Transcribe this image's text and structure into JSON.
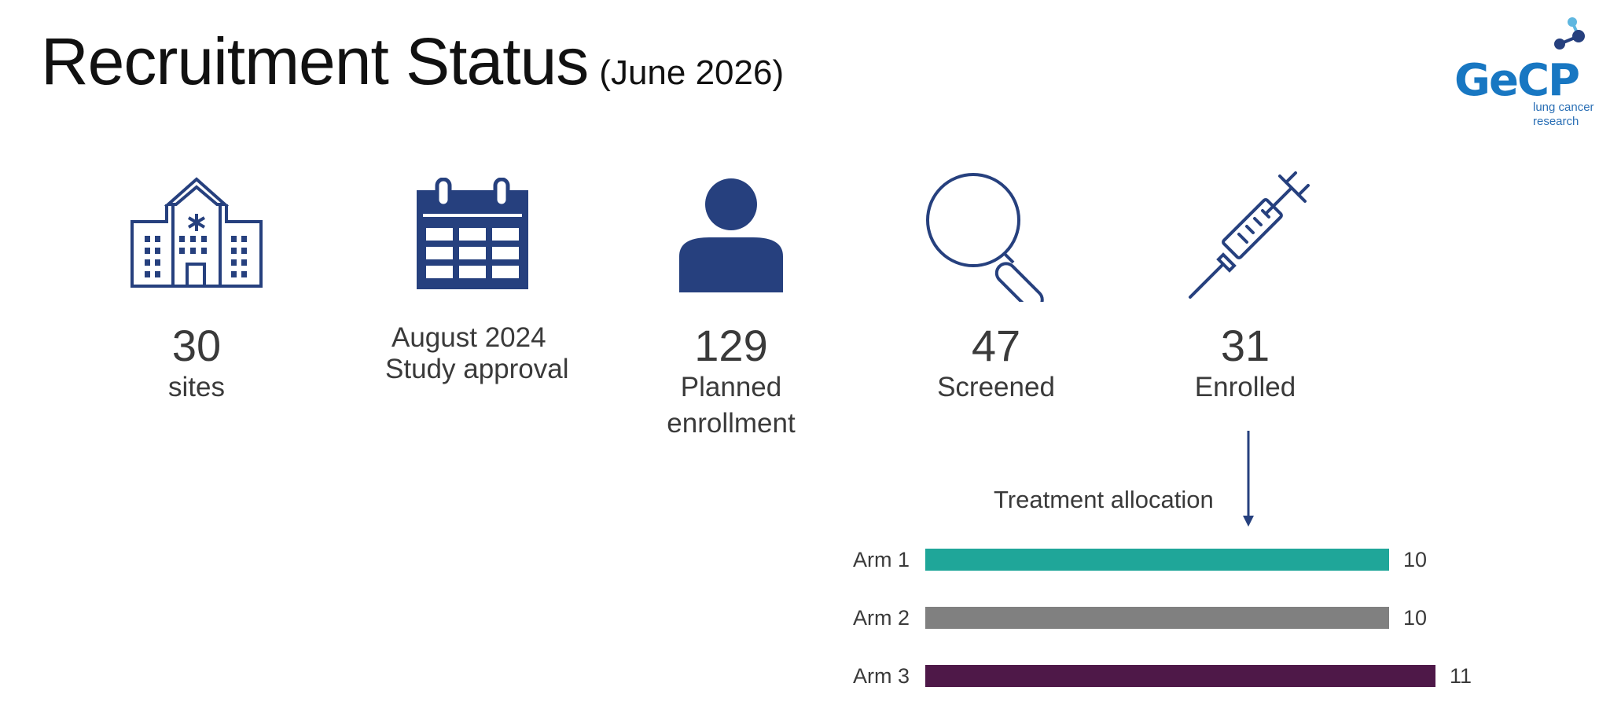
{
  "header": {
    "title": "Recruitment Status",
    "subtitle": "(June 2026)"
  },
  "logo": {
    "wordmark": "GeCP",
    "tagline_line1": "lung cancer",
    "tagline_line2": "research"
  },
  "colors": {
    "icon": "#26407e",
    "arm1": "#1fa699",
    "arm2": "#808080",
    "arm3": "#4e1848"
  },
  "stats": {
    "sites": {
      "icon": "hospital-icon",
      "value": "30",
      "label": "sites"
    },
    "approval": {
      "icon": "calendar-icon",
      "date": "August 2024",
      "label": "Study approval"
    },
    "planned": {
      "icon": "person-icon",
      "value": "129",
      "label_line1": "Planned",
      "label_line2": "enrollment"
    },
    "screened": {
      "icon": "magnifier-icon",
      "value": "47",
      "label": "Screened"
    },
    "enrolled": {
      "icon": "syringe-icon",
      "value": "31",
      "label": "Enrolled"
    }
  },
  "chart_data": {
    "type": "bar",
    "orientation": "horizontal",
    "title": "Treatment allocation",
    "categories": [
      "Arm 1",
      "Arm 2",
      "Arm 3"
    ],
    "values": [
      10,
      10,
      11
    ],
    "colors": [
      "#1fa699",
      "#808080",
      "#4e1848"
    ]
  }
}
